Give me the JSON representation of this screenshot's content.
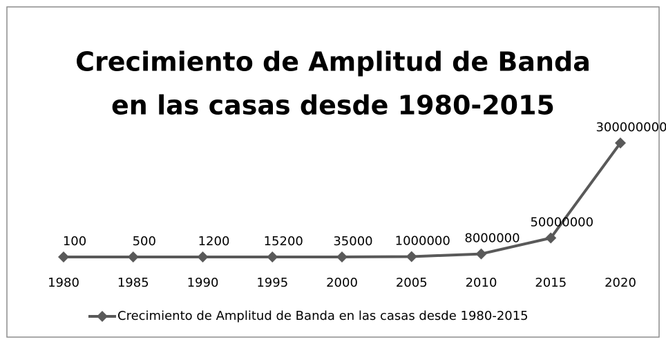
{
  "chart_data": {
    "type": "line",
    "title": [
      "Crecimiento de Amplitud de Banda",
      "en las casas desde 1980-2015"
    ],
    "categories": [
      "1980",
      "1985",
      "1990",
      "1995",
      "2000",
      "2005",
      "2010",
      "2015",
      "2020"
    ],
    "series": [
      {
        "name": "Crecimiento de Amplitud de Banda en las casas desde 1980-2015",
        "color": "#595959",
        "values": [
          100,
          500,
          1200,
          15200,
          35000,
          1000000,
          8000000,
          50000000,
          300000000
        ]
      }
    ],
    "ylim": [
      0,
      350000000
    ],
    "legend": "bottom"
  }
}
